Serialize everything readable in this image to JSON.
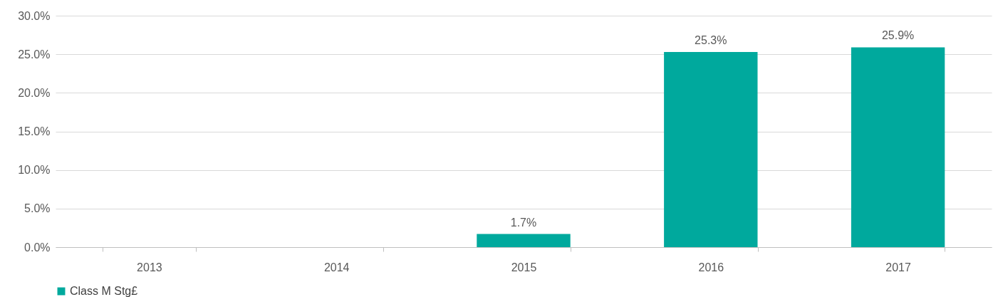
{
  "chart_data": {
    "type": "bar",
    "categories": [
      "2013",
      "2014",
      "2015",
      "2016",
      "2017"
    ],
    "series": [
      {
        "name": "Class M Stg£",
        "color": "#00a99d",
        "values": [
          null,
          null,
          1.7,
          25.3,
          25.9
        ],
        "value_labels": [
          null,
          null,
          "1.7%",
          "25.3%",
          "25.9%"
        ]
      }
    ],
    "ylim": [
      0,
      30
    ],
    "yticks": [
      {
        "value": 0,
        "label": "0.0%"
      },
      {
        "value": 5,
        "label": "5.0%"
      },
      {
        "value": 10,
        "label": "10.0%"
      },
      {
        "value": 15,
        "label": "15.0%"
      },
      {
        "value": 20,
        "label": "20.0%"
      },
      {
        "value": 25,
        "label": "25.0%"
      },
      {
        "value": 30,
        "label": "30.0%"
      }
    ],
    "grid": "y",
    "legend": "bottom"
  }
}
